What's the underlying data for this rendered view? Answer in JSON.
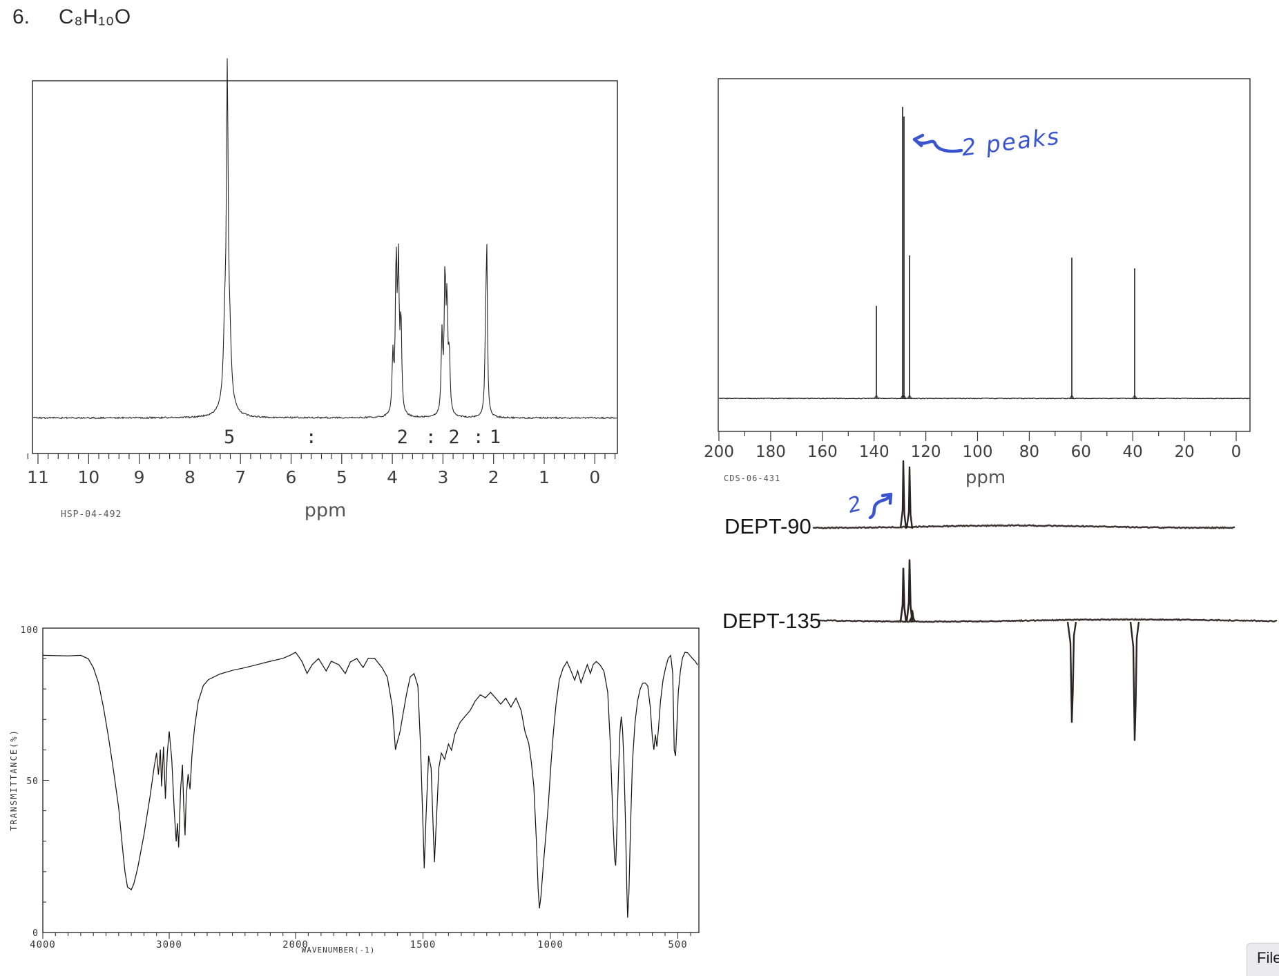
{
  "title": {
    "number": "6.",
    "formula": "C₈H₁₀O"
  },
  "file_button": {
    "label": "File"
  },
  "ink_color": "#3a55cd",
  "annotations": {
    "c13": {
      "text": "2 peaks"
    },
    "dept90": {
      "text": "2"
    }
  },
  "chart_data": [
    {
      "id": "h1_nmr",
      "type": "line",
      "spectrum": "1H NMR",
      "xlabel": "ppm",
      "x_ticks": [
        11,
        10,
        9,
        8,
        7,
        6,
        5,
        4,
        3,
        2,
        1,
        0
      ],
      "x_range": [
        11.3,
        -0.45
      ],
      "source_label": "HSP-04-492",
      "integration": [
        {
          "label": "5",
          "ppm": 7.22
        },
        {
          "label": ":",
          "ppm": 5.6
        },
        {
          "label": "2",
          "ppm": 3.8
        },
        {
          "label": ":",
          "ppm": 3.24
        },
        {
          "label": "2",
          "ppm": 2.78
        },
        {
          "label": ":",
          "ppm": 2.3
        },
        {
          "label": "1",
          "ppm": 1.97
        }
      ],
      "peaks": [
        {
          "ppm": 7.31,
          "height": 0.18,
          "width": 0.03
        },
        {
          "ppm": 7.26,
          "height": 0.906,
          "width": 0.02
        },
        {
          "ppm": 7.21,
          "height": 0.14,
          "width": 0.03
        },
        {
          "ppm": 7.26,
          "height": 0.08,
          "width": 0.1
        },
        {
          "ppm": 3.99,
          "height": 0.17,
          "width": 0.018
        },
        {
          "ppm": 3.925,
          "height": 0.45,
          "width": 0.018
        },
        {
          "ppm": 3.88,
          "height": 0.42,
          "width": 0.018
        },
        {
          "ppm": 3.83,
          "height": 0.27,
          "width": 0.018
        },
        {
          "ppm": 3.02,
          "height": 0.23,
          "width": 0.018
        },
        {
          "ppm": 2.96,
          "height": 0.4,
          "width": 0.018
        },
        {
          "ppm": 2.92,
          "height": 0.3,
          "width": 0.018
        },
        {
          "ppm": 2.875,
          "height": 0.17,
          "width": 0.018
        },
        {
          "ppm": 2.16,
          "height": 0.16,
          "width": 0.018
        },
        {
          "ppm": 2.135,
          "height": 0.478,
          "width": 0.016
        }
      ]
    },
    {
      "id": "c13_nmr",
      "type": "line",
      "spectrum": "13C NMR",
      "xlabel": "ppm",
      "x_ticks": [
        200,
        180,
        160,
        140,
        120,
        100,
        80,
        60,
        40,
        20,
        0
      ],
      "source_label": "CDS-06-431",
      "peaks": [
        {
          "ppm": 139.0,
          "height": 0.29
        },
        {
          "ppm": 128.95,
          "height": 0.91
        },
        {
          "ppm": 128.55,
          "height": 0.88
        },
        {
          "ppm": 126.3,
          "height": 0.447
        },
        {
          "ppm": 63.6,
          "height": 0.44
        },
        {
          "ppm": 39.2,
          "height": 0.407
        }
      ]
    },
    {
      "id": "dept90",
      "type": "line",
      "label": "DEPT-90",
      "peaks_up": [
        {
          "ppm": 128.8,
          "height": 0.95
        },
        {
          "ppm": 126.4,
          "height": 0.86
        }
      ]
    },
    {
      "id": "dept135",
      "type": "line",
      "label": "DEPT-135",
      "peaks_up": [
        {
          "ppm": 128.8,
          "height": 0.43
        },
        {
          "ppm": 126.4,
          "height": 0.5
        },
        {
          "ppm": 125.3,
          "height": 0.08
        }
      ],
      "peaks_down": [
        {
          "ppm": 63.6,
          "depth": 0.84
        },
        {
          "ppm": 39.2,
          "depth": 0.99
        }
      ]
    },
    {
      "id": "ir",
      "type": "line",
      "spectrum": "IR",
      "ylabel": "TRANSMITTANCE(%)",
      "xlabel": "WAVENUMBER(-1)",
      "y_ticks": [
        100,
        50,
        0
      ],
      "x_ticks": [
        4000,
        3000,
        2000,
        1500,
        1000,
        500
      ],
      "points": [
        [
          4000,
          91
        ],
        [
          3800,
          91
        ],
        [
          3700,
          91
        ],
        [
          3640,
          90
        ],
        [
          3600,
          87
        ],
        [
          3560,
          82
        ],
        [
          3520,
          74
        ],
        [
          3480,
          64
        ],
        [
          3440,
          53
        ],
        [
          3400,
          41
        ],
        [
          3370,
          28
        ],
        [
          3350,
          20
        ],
        [
          3330,
          15
        ],
        [
          3300,
          14
        ],
        [
          3280,
          16
        ],
        [
          3250,
          21
        ],
        [
          3200,
          32
        ],
        [
          3150,
          45
        ],
        [
          3120,
          54
        ],
        [
          3100,
          59
        ],
        [
          3085,
          52
        ],
        [
          3070,
          60
        ],
        [
          3060,
          48
        ],
        [
          3045,
          61
        ],
        [
          3030,
          44
        ],
        [
          3015,
          59
        ],
        [
          3000,
          66
        ],
        [
          2980,
          57
        ],
        [
          2960,
          40
        ],
        [
          2945,
          30
        ],
        [
          2935,
          36
        ],
        [
          2925,
          28
        ],
        [
          2910,
          47
        ],
        [
          2895,
          55
        ],
        [
          2885,
          42
        ],
        [
          2875,
          32
        ],
        [
          2865,
          45
        ],
        [
          2850,
          52
        ],
        [
          2835,
          47
        ],
        [
          2820,
          58
        ],
        [
          2800,
          67
        ],
        [
          2770,
          76
        ],
        [
          2730,
          81
        ],
        [
          2690,
          83
        ],
        [
          2600,
          85
        ],
        [
          2500,
          86
        ],
        [
          2400,
          87
        ],
        [
          2300,
          88
        ],
        [
          2200,
          89
        ],
        [
          2100,
          90
        ],
        [
          2040,
          91
        ],
        [
          2000,
          92
        ],
        [
          1975,
          89
        ],
        [
          1955,
          85
        ],
        [
          1935,
          88
        ],
        [
          1910,
          90
        ],
        [
          1880,
          86
        ],
        [
          1860,
          89
        ],
        [
          1830,
          88
        ],
        [
          1805,
          85
        ],
        [
          1785,
          89
        ],
        [
          1760,
          90
        ],
        [
          1735,
          87
        ],
        [
          1715,
          90
        ],
        [
          1690,
          90
        ],
        [
          1660,
          87
        ],
        [
          1640,
          84
        ],
        [
          1620,
          74
        ],
        [
          1608,
          60
        ],
        [
          1600,
          63
        ],
        [
          1590,
          66
        ],
        [
          1580,
          71
        ],
        [
          1565,
          78
        ],
        [
          1550,
          84
        ],
        [
          1535,
          85
        ],
        [
          1520,
          81
        ],
        [
          1510,
          62
        ],
        [
          1500,
          35
        ],
        [
          1495,
          21
        ],
        [
          1488,
          38
        ],
        [
          1478,
          58
        ],
        [
          1468,
          54
        ],
        [
          1460,
          34
        ],
        [
          1455,
          23
        ],
        [
          1448,
          36
        ],
        [
          1438,
          54
        ],
        [
          1428,
          59
        ],
        [
          1415,
          57
        ],
        [
          1400,
          62
        ],
        [
          1388,
          60
        ],
        [
          1375,
          65
        ],
        [
          1355,
          69
        ],
        [
          1335,
          71
        ],
        [
          1315,
          73
        ],
        [
          1295,
          76
        ],
        [
          1275,
          78
        ],
        [
          1255,
          77
        ],
        [
          1235,
          79
        ],
        [
          1215,
          77
        ],
        [
          1195,
          75
        ],
        [
          1175,
          77
        ],
        [
          1155,
          74
        ],
        [
          1135,
          77
        ],
        [
          1115,
          73
        ],
        [
          1100,
          66
        ],
        [
          1085,
          62
        ],
        [
          1075,
          56
        ],
        [
          1065,
          48
        ],
        [
          1055,
          30
        ],
        [
          1048,
          14
        ],
        [
          1043,
          8
        ],
        [
          1037,
          12
        ],
        [
          1028,
          22
        ],
        [
          1018,
          32
        ],
        [
          1008,
          42
        ],
        [
          998,
          55
        ],
        [
          988,
          66
        ],
        [
          978,
          75
        ],
        [
          965,
          83
        ],
        [
          950,
          87
        ],
        [
          935,
          89
        ],
        [
          920,
          86
        ],
        [
          905,
          83
        ],
        [
          893,
          86
        ],
        [
          880,
          82
        ],
        [
          868,
          85
        ],
        [
          855,
          88
        ],
        [
          843,
          85
        ],
        [
          832,
          88
        ],
        [
          820,
          89
        ],
        [
          805,
          88
        ],
        [
          790,
          86
        ],
        [
          775,
          79
        ],
        [
          765,
          62
        ],
        [
          755,
          38
        ],
        [
          748,
          24
        ],
        [
          744,
          22
        ],
        [
          740,
          31
        ],
        [
          733,
          52
        ],
        [
          727,
          66
        ],
        [
          722,
          71
        ],
        [
          717,
          67
        ],
        [
          712,
          57
        ],
        [
          706,
          38
        ],
        [
          700,
          14
        ],
        [
          697,
          5
        ],
        [
          692,
          13
        ],
        [
          686,
          34
        ],
        [
          678,
          56
        ],
        [
          668,
          69
        ],
        [
          658,
          76
        ],
        [
          648,
          80
        ],
        [
          638,
          82
        ],
        [
          628,
          82
        ],
        [
          618,
          81
        ],
        [
          608,
          74
        ],
        [
          600,
          64
        ],
        [
          594,
          60
        ],
        [
          588,
          65
        ],
        [
          582,
          61
        ],
        [
          576,
          67
        ],
        [
          568,
          76
        ],
        [
          558,
          83
        ],
        [
          548,
          87
        ],
        [
          538,
          90
        ],
        [
          528,
          91
        ],
        [
          520,
          85
        ],
        [
          514,
          60
        ],
        [
          509,
          58
        ],
        [
          504,
          67
        ],
        [
          498,
          79
        ],
        [
          490,
          86
        ],
        [
          482,
          90
        ],
        [
          472,
          92
        ],
        [
          462,
          92
        ],
        [
          452,
          91
        ],
        [
          442,
          90
        ],
        [
          432,
          89
        ],
        [
          422,
          88
        ]
      ]
    }
  ]
}
